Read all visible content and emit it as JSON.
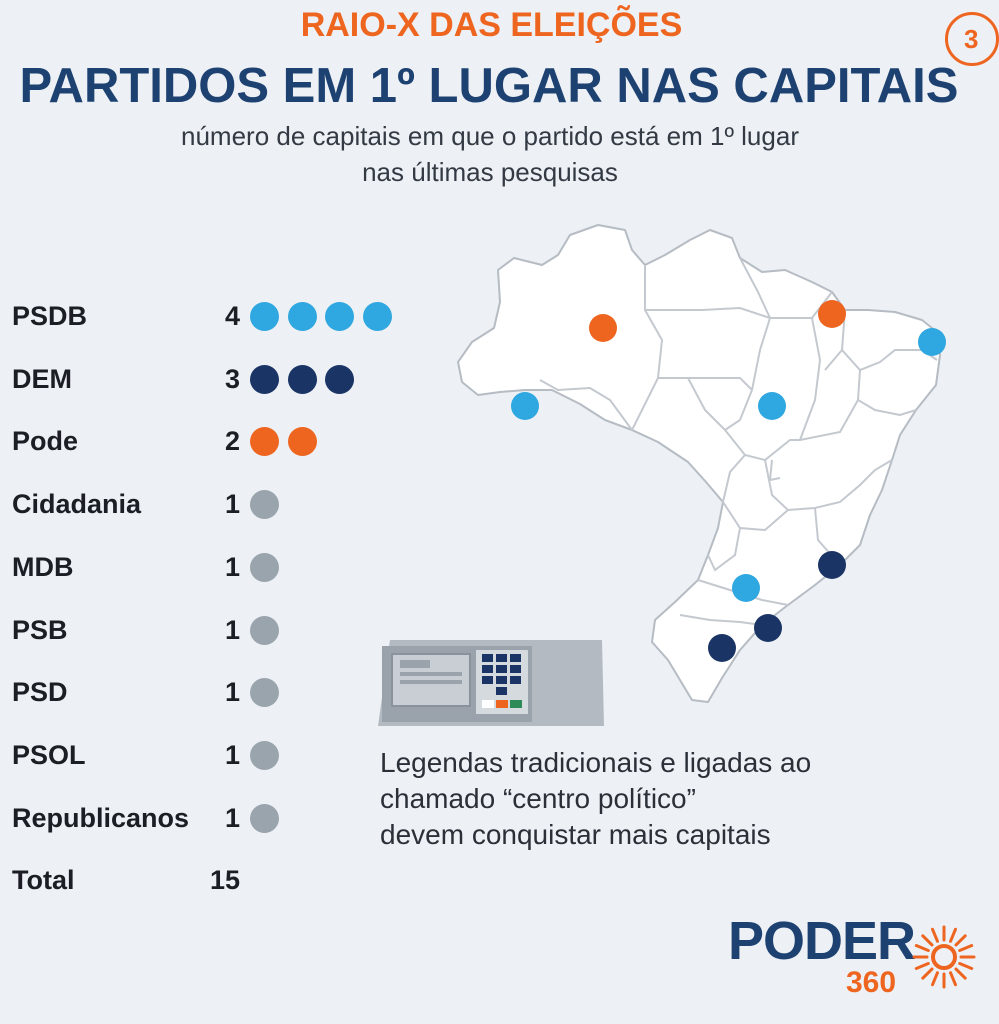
{
  "header": {
    "kicker": "RAIO-X DAS ELEIÇÕES",
    "page_number": "3",
    "title": "PARTIDOS EM 1º LUGAR NAS CAPITAIS",
    "subtitle_line1": "número de capitais em que o partido está em 1º lugar",
    "subtitle_line2": "nas últimas pesquisas"
  },
  "colors": {
    "accent_orange": "#ee6520",
    "title_navy": "#1d4271",
    "psdb": "#2fa7e0",
    "dem": "#1a3565",
    "pode": "#ee6520",
    "others": "#9aa4ad",
    "map_fill": "#ffffff",
    "map_border": "#b6bcc4"
  },
  "chart_data": {
    "type": "bar",
    "title": "PARTIDOS EM 1º LUGAR NAS CAPITAIS",
    "subtitle": "número de capitais em que o partido está em 1º lugar nas últimas pesquisas",
    "categories": [
      "PSDB",
      "DEM",
      "Pode",
      "Cidadania",
      "MDB",
      "PSB",
      "PSD",
      "PSOL",
      "Republicanos"
    ],
    "values": [
      4,
      3,
      2,
      1,
      1,
      1,
      1,
      1,
      1
    ],
    "colors": [
      "#2fa7e0",
      "#1a3565",
      "#ee6520",
      "#9aa4ad",
      "#9aa4ad",
      "#9aa4ad",
      "#9aa4ad",
      "#9aa4ad",
      "#9aa4ad"
    ],
    "total_label": "Total",
    "total": 15,
    "encoding": "dots",
    "map": {
      "highlighted_capitals": [
        {
          "party": "Pode",
          "color": "#ee6520"
        },
        {
          "party": "Pode",
          "color": "#ee6520"
        },
        {
          "party": "PSDB",
          "color": "#2fa7e0"
        },
        {
          "party": "PSDB",
          "color": "#2fa7e0"
        },
        {
          "party": "PSDB",
          "color": "#2fa7e0"
        },
        {
          "party": "PSDB",
          "color": "#2fa7e0"
        },
        {
          "party": "DEM",
          "color": "#1a3565"
        },
        {
          "party": "DEM",
          "color": "#1a3565"
        },
        {
          "party": "DEM",
          "color": "#1a3565"
        }
      ]
    }
  },
  "note": {
    "line1": "Legendas tradicionais e ligadas ao",
    "line2": "chamado “centro político”",
    "line3": "devem conquistar mais capitais"
  },
  "logo": {
    "word": "PODER",
    "number": "360",
    "icon": "sun-burst-icon"
  },
  "illustration": {
    "icon": "voting-machine-icon"
  }
}
